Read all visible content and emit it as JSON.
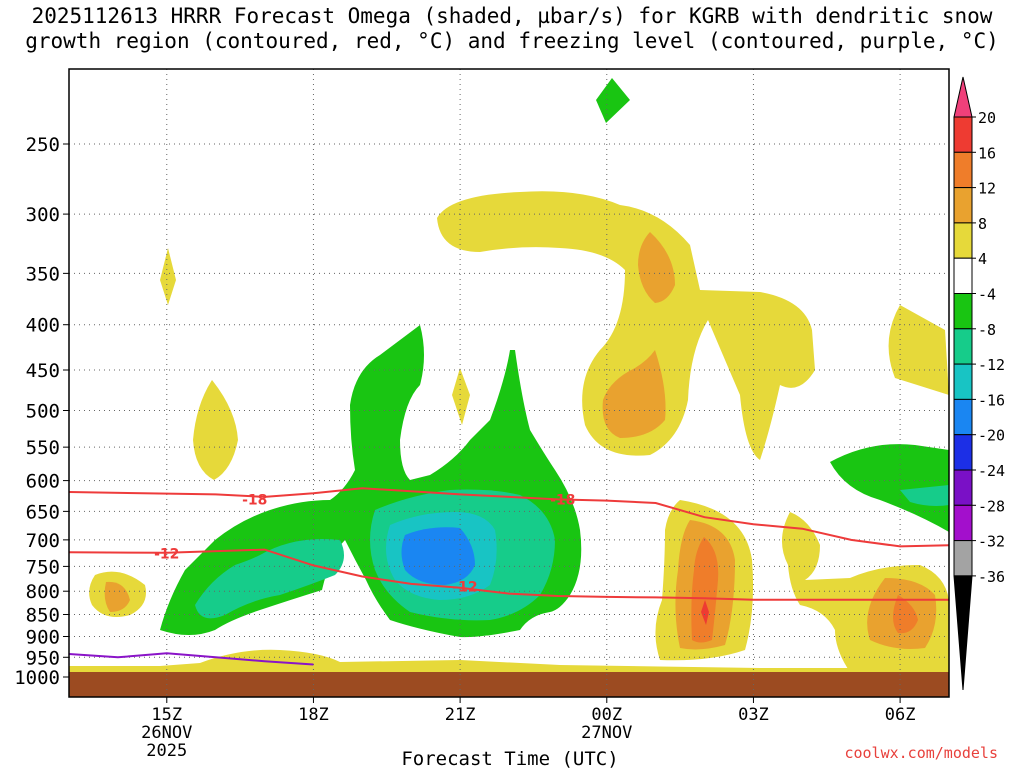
{
  "chart_data": {
    "type": "heatmap",
    "title_line1": "2025112613 HRRR Forecast Omega (shaded, µbar/s) for KGRB with dendritic snow",
    "title_line2": "growth region (contoured, red, °C) and freezing level (contoured, purple, °C)",
    "xlabel": "Forecast Time (UTC)",
    "ylabel": "",
    "x_ticks": [
      {
        "label": "15Z",
        "hours": 15,
        "sub1": "26NOV",
        "sub2": "2025"
      },
      {
        "label": "18Z",
        "hours": 18,
        "sub1": "",
        "sub2": ""
      },
      {
        "label": "21Z",
        "hours": 21,
        "sub1": "",
        "sub2": ""
      },
      {
        "label": "00Z",
        "hours": 24,
        "sub1": "27NOV",
        "sub2": ""
      },
      {
        "label": "03Z",
        "hours": 27,
        "sub1": "",
        "sub2": ""
      },
      {
        "label": "06Z",
        "hours": 30,
        "sub1": "",
        "sub2": ""
      }
    ],
    "x_range_hours": [
      13,
      31
    ],
    "y_ticks": [
      250,
      300,
      350,
      400,
      450,
      500,
      550,
      600,
      650,
      700,
      750,
      800,
      850,
      900,
      950,
      1000
    ],
    "y_range_hPa": [
      200,
      1000
    ],
    "colorbar": {
      "labels": [
        "20",
        "16",
        "12",
        "8",
        "4",
        "-4",
        "-8",
        "-12",
        "-16",
        "-20",
        "-24",
        "-28",
        "-32",
        "-36"
      ],
      "colors_top_to_bottom": [
        "#f0407a",
        "#ee3b32",
        "#ef7d2a",
        "#e9a22f",
        "#e6d93a",
        "#ffffff",
        "#19c512",
        "#16cc8a",
        "#18c4c4",
        "#1a86f2",
        "#1c2fe6",
        "#7a10c6",
        "#a30fcc",
        "#a3a3a3",
        "#000000"
      ]
    },
    "isotherm_labels": [
      {
        "value": "-18",
        "hours": 16.8,
        "hPa": 630
      },
      {
        "value": "-18",
        "hours": 23.1,
        "hPa": 630
      },
      {
        "value": "-12",
        "hours": 15.0,
        "hPa": 725
      },
      {
        "value": "-12",
        "hours": 21.1,
        "hPa": 790
      }
    ],
    "dgz_line_minus18": [
      [
        13,
        618
      ],
      [
        16,
        622
      ],
      [
        17,
        626
      ],
      [
        18,
        620
      ],
      [
        19,
        612
      ],
      [
        20,
        617
      ],
      [
        21,
        622
      ],
      [
        22,
        626
      ],
      [
        23,
        630
      ],
      [
        24,
        632
      ],
      [
        25,
        636
      ],
      [
        26,
        660
      ],
      [
        27,
        672
      ],
      [
        28,
        680
      ],
      [
        29,
        700
      ],
      [
        30,
        712
      ],
      [
        31,
        710
      ]
    ],
    "dgz_line_minus12": [
      [
        13,
        723
      ],
      [
        15,
        724
      ],
      [
        17,
        718
      ],
      [
        18,
        748
      ],
      [
        19,
        770
      ],
      [
        20,
        785
      ],
      [
        21,
        793
      ],
      [
        22,
        805
      ],
      [
        23,
        810
      ],
      [
        24,
        812
      ],
      [
        25,
        813
      ],
      [
        26,
        815
      ],
      [
        27,
        818
      ],
      [
        28,
        818
      ],
      [
        29,
        818
      ],
      [
        31,
        818
      ]
    ],
    "freezing_level": [
      [
        13,
        942
      ],
      [
        14,
        950
      ],
      [
        15,
        940
      ],
      [
        16,
        950
      ],
      [
        17,
        960
      ],
      [
        18,
        968
      ]
    ]
  },
  "credit": "coolwx.com/models"
}
